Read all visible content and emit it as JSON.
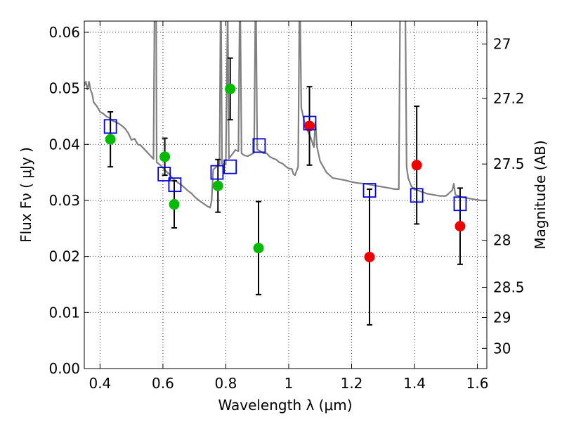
{
  "chart_data": {
    "type": "scatter",
    "xlabel": "Wavelength  λ (μm)",
    "ylabel": "Flux  Fν  ( μJy )",
    "ylabel_right": "Magnitude (AB)",
    "xlim": [
      0.35,
      1.63
    ],
    "ylim": [
      0.0,
      0.062
    ],
    "grid": true,
    "x_ticks": [
      0.4,
      0.6,
      0.8,
      1.0,
      1.2,
      1.4,
      1.6
    ],
    "x_tick_labels": [
      "0.4",
      "0.6",
      "0.8",
      "1",
      "1.2",
      "1.4",
      "1.6"
    ],
    "y_ticks": [
      0.0,
      0.01,
      0.02,
      0.03,
      0.04,
      0.05,
      0.06
    ],
    "y_tick_labels": [
      "0.00",
      "0.01",
      "0.02",
      "0.03",
      "0.04",
      "0.05",
      "0.06"
    ],
    "right_ticks": [
      {
        "label": "27",
        "flux": 0.0579
      },
      {
        "label": "27.2",
        "flux": 0.0482
      },
      {
        "label": "27.5",
        "flux": 0.0365
      },
      {
        "label": "28",
        "flux": 0.0229
      },
      {
        "label": "28.5",
        "flux": 0.0145
      },
      {
        "label": "29",
        "flux": 0.0091
      },
      {
        "label": "30",
        "flux": 0.0036
      }
    ],
    "series": [
      {
        "marker": "circle",
        "color": "#00bb00",
        "points": [
          {
            "x": 0.433,
            "y": 0.0409,
            "err": 0.0049
          },
          {
            "x": 0.606,
            "y": 0.0378,
            "err": 0.0033
          },
          {
            "x": 0.636,
            "y": 0.0293,
            "err": 0.0042
          },
          {
            "x": 0.775,
            "y": 0.0326,
            "err": 0.0047
          },
          {
            "x": 0.814,
            "y": 0.0499,
            "err": 0.0055
          },
          {
            "x": 0.904,
            "y": 0.0215,
            "err": 0.0083
          }
        ]
      },
      {
        "marker": "circle",
        "color": "#ee0000",
        "points": [
          {
            "x": 1.066,
            "y": 0.0433,
            "err": 0.007
          },
          {
            "x": 1.257,
            "y": 0.0199,
            "err": 0.0121
          },
          {
            "x": 1.407,
            "y": 0.0363,
            "err": 0.0105
          },
          {
            "x": 1.545,
            "y": 0.0254,
            "err": 0.0068
          }
        ]
      },
      {
        "marker": "open-square",
        "color": "#0000dd",
        "points": [
          {
            "x": 0.433,
            "y": 0.0432
          },
          {
            "x": 0.604,
            "y": 0.0347
          },
          {
            "x": 0.638,
            "y": 0.0328
          },
          {
            "x": 0.772,
            "y": 0.035
          },
          {
            "x": 0.814,
            "y": 0.036
          },
          {
            "x": 0.906,
            "y": 0.0398
          },
          {
            "x": 1.067,
            "y": 0.0438
          },
          {
            "x": 1.257,
            "y": 0.0318
          },
          {
            "x": 1.407,
            "y": 0.0309
          },
          {
            "x": 1.545,
            "y": 0.0294
          }
        ]
      }
    ],
    "model_spectrum": {
      "color": "#808080",
      "points": [
        [
          0.35,
          0.0505
        ],
        [
          0.355,
          0.0512
        ],
        [
          0.36,
          0.0498
        ],
        [
          0.365,
          0.0512
        ],
        [
          0.37,
          0.0497
        ],
        [
          0.375,
          0.049
        ],
        [
          0.38,
          0.0475
        ],
        [
          0.39,
          0.0468
        ],
        [
          0.4,
          0.0458
        ],
        [
          0.41,
          0.0455
        ],
        [
          0.42,
          0.045
        ],
        [
          0.43,
          0.0447
        ],
        [
          0.44,
          0.0442
        ],
        [
          0.45,
          0.044
        ],
        [
          0.46,
          0.0437
        ],
        [
          0.47,
          0.0433
        ],
        [
          0.48,
          0.0428
        ],
        [
          0.49,
          0.042
        ],
        [
          0.5,
          0.0408
        ],
        [
          0.51,
          0.041
        ],
        [
          0.52,
          0.04
        ],
        [
          0.53,
          0.0398
        ],
        [
          0.54,
          0.0392
        ],
        [
          0.55,
          0.0386
        ],
        [
          0.56,
          0.038
        ],
        [
          0.57,
          0.0374
        ],
        [
          0.574,
          0.07
        ],
        [
          0.578,
          0.07
        ],
        [
          0.58,
          0.0368
        ],
        [
          0.59,
          0.0364
        ],
        [
          0.6,
          0.0358
        ],
        [
          0.61,
          0.0352
        ],
        [
          0.62,
          0.0347
        ],
        [
          0.63,
          0.034
        ],
        [
          0.64,
          0.0335
        ],
        [
          0.65,
          0.0331
        ],
        [
          0.66,
          0.0327
        ],
        [
          0.67,
          0.0322
        ],
        [
          0.68,
          0.0317
        ],
        [
          0.69,
          0.0313
        ],
        [
          0.7,
          0.0307
        ],
        [
          0.71,
          0.0302
        ],
        [
          0.72,
          0.0298
        ],
        [
          0.73,
          0.0294
        ],
        [
          0.74,
          0.029
        ],
        [
          0.75,
          0.0287
        ],
        [
          0.755,
          0.03
        ],
        [
          0.76,
          0.0355
        ],
        [
          0.77,
          0.036
        ],
        [
          0.78,
          0.0365
        ],
        [
          0.784,
          0.07
        ],
        [
          0.788,
          0.0365
        ],
        [
          0.8,
          0.0364
        ],
        [
          0.806,
          0.064
        ],
        [
          0.81,
          0.0375
        ],
        [
          0.82,
          0.0382
        ],
        [
          0.83,
          0.039
        ],
        [
          0.84,
          0.0388
        ],
        [
          0.845,
          0.07
        ],
        [
          0.85,
          0.0384
        ],
        [
          0.86,
          0.038
        ],
        [
          0.87,
          0.0379
        ],
        [
          0.88,
          0.0382
        ],
        [
          0.89,
          0.0385
        ],
        [
          0.895,
          0.07
        ],
        [
          0.9,
          0.0391
        ],
        [
          0.91,
          0.0388
        ],
        [
          0.92,
          0.0384
        ],
        [
          0.93,
          0.0384
        ],
        [
          0.94,
          0.0378
        ],
        [
          0.95,
          0.0375
        ],
        [
          0.96,
          0.0373
        ],
        [
          0.97,
          0.0368
        ],
        [
          0.98,
          0.0366
        ],
        [
          0.99,
          0.0361
        ],
        [
          1.0,
          0.0357
        ],
        [
          1.01,
          0.0356
        ],
        [
          1.015,
          0.0347
        ],
        [
          1.02,
          0.0345
        ],
        [
          1.03,
          0.036
        ],
        [
          1.035,
          0.07
        ],
        [
          1.04,
          0.0465
        ],
        [
          1.05,
          0.044
        ],
        [
          1.06,
          0.0425
        ],
        [
          1.07,
          0.0412
        ],
        [
          1.08,
          0.0395
        ],
        [
          1.085,
          0.044
        ],
        [
          1.09,
          0.0395
        ],
        [
          1.1,
          0.037
        ],
        [
          1.12,
          0.035
        ],
        [
          1.14,
          0.034
        ],
        [
          1.16,
          0.0338
        ],
        [
          1.18,
          0.0336
        ],
        [
          1.2,
          0.0333
        ],
        [
          1.22,
          0.0331
        ],
        [
          1.24,
          0.033
        ],
        [
          1.26,
          0.0328
        ],
        [
          1.28,
          0.0326
        ],
        [
          1.3,
          0.0324
        ],
        [
          1.32,
          0.0322
        ],
        [
          1.34,
          0.032
        ],
        [
          1.35,
          0.032
        ],
        [
          1.355,
          0.07
        ],
        [
          1.37,
          0.07
        ],
        [
          1.375,
          0.036
        ],
        [
          1.38,
          0.034
        ],
        [
          1.39,
          0.0325
        ],
        [
          1.4,
          0.032
        ],
        [
          1.42,
          0.0316
        ],
        [
          1.44,
          0.0312
        ],
        [
          1.46,
          0.031
        ],
        [
          1.48,
          0.0308
        ],
        [
          1.5,
          0.0308
        ],
        [
          1.52,
          0.0318
        ],
        [
          1.525,
          0.033
        ],
        [
          1.53,
          0.031
        ],
        [
          1.55,
          0.0306
        ],
        [
          1.57,
          0.0304
        ],
        [
          1.59,
          0.0302
        ],
        [
          1.61,
          0.03
        ],
        [
          1.63,
          0.03
        ]
      ]
    }
  }
}
